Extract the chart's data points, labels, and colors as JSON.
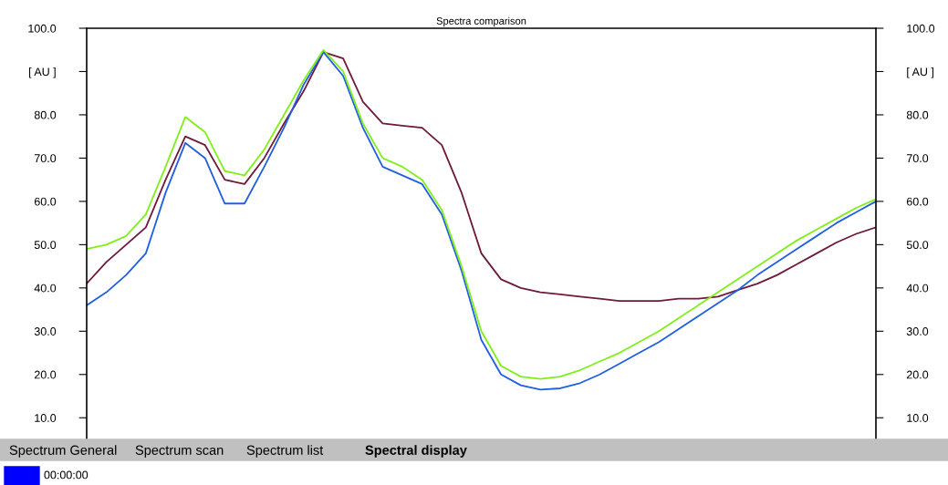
{
  "chart_data": {
    "type": "line",
    "title": "Spectra comparison",
    "categories": [
      null,
      null,
      null,
      null,
      null,
      null,
      null,
      null,
      null,
      null,
      null,
      null,
      null,
      null,
      null,
      null,
      null,
      null,
      null,
      null,
      null,
      null,
      null,
      null,
      null,
      null,
      null,
      null,
      null,
      null,
      null,
      null,
      null,
      null,
      null,
      null,
      null,
      null,
      null,
      null,
      null
    ],
    "series": [
      {
        "color": "#6e1a3a",
        "values": [
          41,
          46,
          50,
          54,
          65,
          75,
          73,
          65,
          64,
          70,
          78,
          85.5,
          94.5,
          93,
          83,
          78,
          77.5,
          77,
          73,
          62,
          48,
          42,
          40,
          39,
          38.5,
          38,
          37.5,
          37,
          37,
          37,
          37.5,
          37.5,
          38,
          39.5,
          41,
          43,
          45.5,
          48,
          50.5,
          52.5,
          54
        ]
      },
      {
        "color": "#1f5fe0",
        "values": [
          36,
          39,
          43,
          48,
          62,
          73.5,
          70,
          59.5,
          59.5,
          68,
          77,
          87,
          94.5,
          89,
          77,
          68,
          66,
          64,
          57,
          44,
          28,
          20,
          17.5,
          16.5,
          16.8,
          18,
          20,
          22.5,
          25,
          27.5,
          30.5,
          33.5,
          36.5,
          39.5,
          43,
          46,
          49,
          52,
          55,
          57.5,
          60
        ]
      },
      {
        "color": "#80ee1a",
        "values": [
          49,
          50,
          52,
          57,
          68,
          79.5,
          76,
          67,
          66,
          72,
          80,
          88,
          95,
          90,
          78,
          70,
          68,
          65,
          58,
          45,
          30,
          22,
          19.5,
          19,
          19.5,
          21,
          23,
          25,
          27.5,
          30,
          33,
          36,
          39,
          42,
          45,
          48,
          51,
          53.5,
          56,
          58.5,
          60.5
        ]
      }
    ],
    "ylim": [
      5,
      100
    ],
    "yticks": [
      {
        "value": 10,
        "label": "10.0"
      },
      {
        "value": 20,
        "label": "20.0"
      },
      {
        "value": 30,
        "label": "30.0"
      },
      {
        "value": 40,
        "label": "40.0"
      },
      {
        "value": 50,
        "label": "50.0"
      },
      {
        "value": 60,
        "label": "60.0"
      },
      {
        "value": 70,
        "label": "70.0"
      },
      {
        "value": 80,
        "label": "80.0"
      },
      {
        "value": 90,
        "label": "[ AU ]"
      },
      {
        "value": 100,
        "label": "100.0"
      }
    ],
    "y2lim": [
      5,
      100
    ],
    "y2ticks": [
      {
        "value": 10,
        "label": "10.0"
      },
      {
        "value": 20,
        "label": "20.0"
      },
      {
        "value": 30,
        "label": "30.0"
      },
      {
        "value": 40,
        "label": "40.0"
      },
      {
        "value": 50,
        "label": "50.0"
      },
      {
        "value": 60,
        "label": "60.0"
      },
      {
        "value": 70,
        "label": "70.0"
      },
      {
        "value": 80,
        "label": "80.0"
      },
      {
        "value": 90,
        "label": "[ AU ]"
      },
      {
        "value": 100,
        "label": "100.0"
      }
    ],
    "tick_labels": "y",
    "grid": false,
    "legend": false,
    "annotations": [
      "Spectrum General",
      "Spectrum scan",
      "Spectrum list",
      "Spectral display",
      "00:00:00"
    ]
  }
}
